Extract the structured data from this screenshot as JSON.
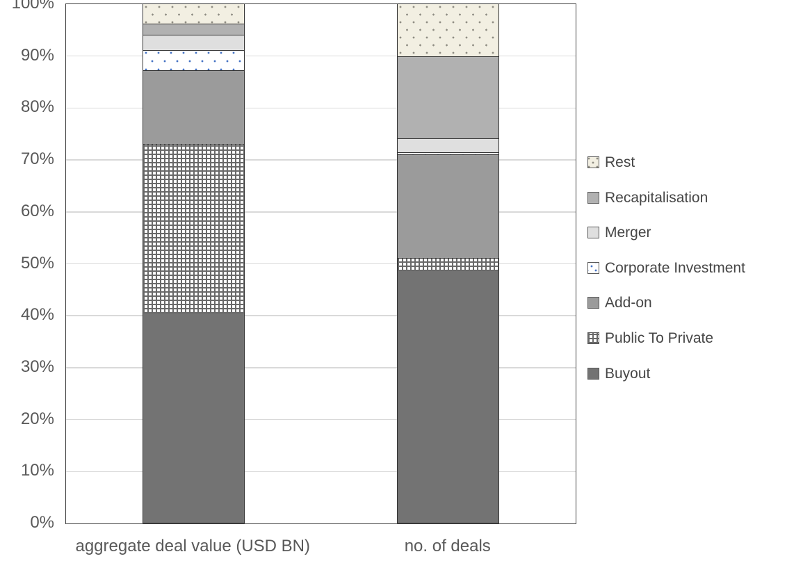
{
  "chart_data": {
    "type": "bar",
    "stacked": true,
    "units": "percent",
    "title": "",
    "xlabel": "",
    "ylabel": "",
    "ylim": [
      0,
      100
    ],
    "grid": true,
    "legend_position": "right",
    "categories": [
      "aggregate deal value (USD BN)",
      "no. of deals"
    ],
    "y_ticks": [
      "100%",
      "90%",
      "80%",
      "70%",
      "60%",
      "50%",
      "40%",
      "30%",
      "20%",
      "10%",
      "0%"
    ],
    "series": [
      {
        "name": "Buyout",
        "key": "buyout",
        "values": [
          40.3,
          48.5
        ]
      },
      {
        "name": "Public To Private",
        "key": "ptp",
        "values": [
          32.7,
          2.5
        ]
      },
      {
        "name": "Add-on",
        "key": "addon",
        "values": [
          14.2,
          19.9
        ]
      },
      {
        "name": "Corporate Investment",
        "key": "ci",
        "values": [
          3.9,
          0.4
        ]
      },
      {
        "name": "Merger",
        "key": "merger",
        "values": [
          2.9,
          2.7
        ]
      },
      {
        "name": "Recapitalisation",
        "key": "recap",
        "values": [
          2.1,
          15.9
        ]
      },
      {
        "name": "Rest",
        "key": "rest",
        "values": [
          3.9,
          10.1
        ]
      }
    ],
    "legend": [
      {
        "label": "Rest",
        "key": "rest"
      },
      {
        "label": "Recapitalisation",
        "key": "recap"
      },
      {
        "label": "Merger",
        "key": "merger"
      },
      {
        "label": "Corporate Investment",
        "key": "ci"
      },
      {
        "label": "Add-on",
        "key": "addon"
      },
      {
        "label": "Public To Private",
        "key": "ptp"
      },
      {
        "label": "Buyout",
        "key": "buyout"
      }
    ]
  },
  "colors": {
    "buyout": "#737373",
    "public_to_private_grid": "#696969",
    "addon": "#9b9b9b",
    "corporate_investment_dot": "#4472c4",
    "merger": "#dfdfdf",
    "recapitalisation": "#b1b1b1",
    "rest_background": "#f2efe2",
    "rest_dot": "#8f8d83",
    "gridline": "#d9d9d9",
    "plot_border": "#3f3f3f",
    "axis_text": "#595959"
  }
}
